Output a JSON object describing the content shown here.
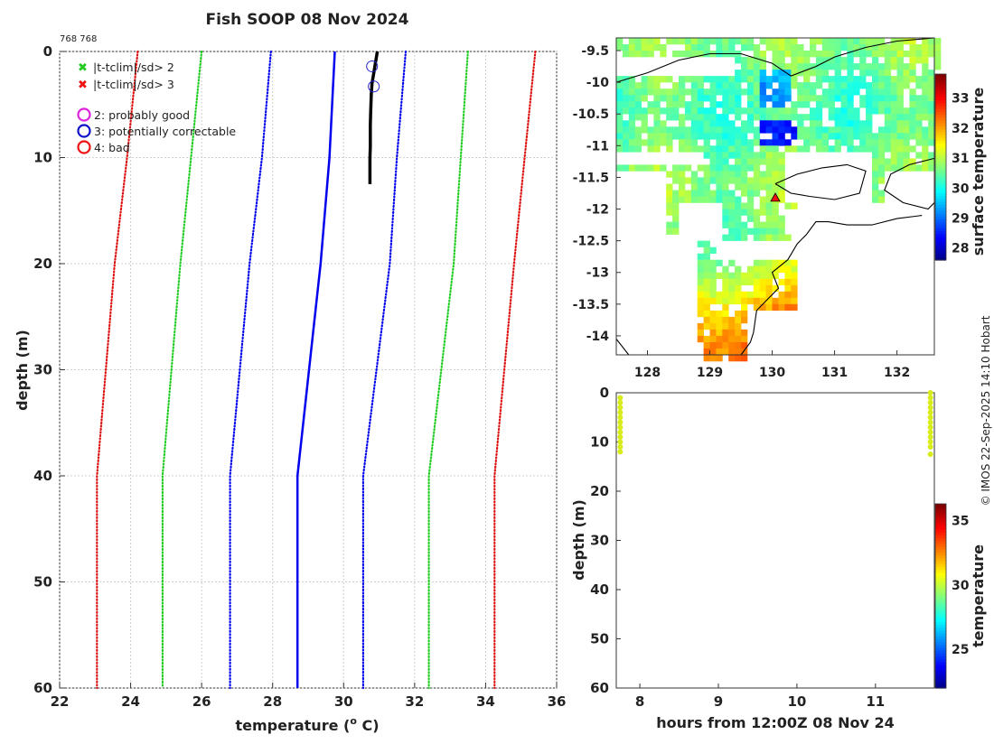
{
  "header": {
    "title": "Fish SOOP 08 Nov 2024",
    "id_label": "768 768",
    "credit": "© IMOS 22-Sep-2025 14:10 Hobart"
  },
  "legend": {
    "flag_items": [
      {
        "label": "|t-tclim|/sd> 2",
        "color": "#22cc22"
      },
      {
        "label": "|t-tclim|/sd> 3",
        "color": "#ee1111"
      }
    ],
    "qc_items": [
      {
        "label": "2: probably good",
        "color": "#dd22dd"
      },
      {
        "label": "3: potentially correctable",
        "color": "#1111cc"
      },
      {
        "label": "4: bad",
        "color": "#ee1111"
      }
    ]
  },
  "colors": {
    "profile": "#000000",
    "climatology": "#0000ee",
    "sd2": "#22cc22",
    "sd3": "#dd1111",
    "qc_marker": "#2222cc",
    "land_mask": "#ffffff",
    "map_marker": "#ee1111",
    "section_dots": "#d8ec1a"
  },
  "chart_data": [
    {
      "name": "profile",
      "type": "line",
      "title": "Fish SOOP 08 Nov 2024",
      "xlabel": "temperature (",
      "xlabel_sup": "o",
      "xlabel_tail": " C)",
      "ylabel": "depth (m)",
      "xlim": [
        22,
        36
      ],
      "ylim": [
        60,
        0
      ],
      "xticks": [
        22,
        24,
        26,
        28,
        30,
        32,
        34,
        36
      ],
      "yticks": [
        0,
        10,
        20,
        30,
        40,
        50,
        60
      ],
      "grid": true,
      "climatology_depth": [
        0,
        10,
        20,
        40,
        60
      ],
      "series": [
        {
          "name": "climatology",
          "style": "solid",
          "temp": [
            29.75,
            29.6,
            29.35,
            28.7,
            28.7
          ]
        },
        {
          "name": "clim-1sd",
          "style": "dotted",
          "temp": [
            27.95,
            27.7,
            27.35,
            26.8,
            26.8
          ]
        },
        {
          "name": "clim+1sd",
          "style": "dotted",
          "temp": [
            31.75,
            31.5,
            31.3,
            30.55,
            30.55
          ]
        },
        {
          "name": "clim-2sd",
          "style": "dotted",
          "temp": [
            26.0,
            25.7,
            25.4,
            24.9,
            24.9
          ]
        },
        {
          "name": "clim+2sd",
          "style": "dotted",
          "temp": [
            33.5,
            33.3,
            33.1,
            32.4,
            32.4
          ]
        },
        {
          "name": "clim-3sd",
          "style": "dotted",
          "temp": [
            24.2,
            23.9,
            23.55,
            23.05,
            23.05
          ]
        },
        {
          "name": "clim+3sd",
          "style": "dotted",
          "temp": [
            35.4,
            35.1,
            34.8,
            34.25,
            34.25
          ]
        }
      ],
      "profile": {
        "depth": [
          0,
          1,
          2,
          3,
          4,
          5,
          6,
          7,
          8,
          9,
          10,
          11,
          12.5
        ],
        "temp": [
          30.95,
          30.9,
          30.85,
          30.8,
          30.78,
          30.77,
          30.76,
          30.75,
          30.75,
          30.75,
          30.74,
          30.74,
          30.74
        ]
      },
      "qc_markers": [
        {
          "temp": 30.8,
          "depth": 1.4,
          "flag": 3
        },
        {
          "temp": 30.85,
          "depth": 3.3,
          "flag": 3
        }
      ]
    },
    {
      "name": "sst_map",
      "type": "heatmap",
      "xlim": [
        127.5,
        132.6
      ],
      "ylim": [
        -14.3,
        -9.3
      ],
      "xticks": [
        128,
        129,
        130,
        131,
        132
      ],
      "yticks": [
        -9.5,
        -10,
        -10.5,
        -11,
        -11.5,
        -12,
        -12.5,
        -13,
        -13.5,
        -14
      ],
      "colorbar_label": "surface temperature",
      "clim": [
        27.6,
        33.8
      ],
      "colorbar_ticks": [
        28,
        29,
        30,
        31,
        32,
        33
      ],
      "station": {
        "lon": 130.05,
        "lat": -11.82
      }
    },
    {
      "name": "section",
      "type": "scatter",
      "xlabel": "hours from 12:00Z 08 Nov 24",
      "ylabel": "depth (m)",
      "xlim": [
        7.7,
        11.75
      ],
      "ylim": [
        60,
        0
      ],
      "xticks": [
        8,
        9,
        10,
        11
      ],
      "yticks": [
        0,
        10,
        20,
        30,
        40,
        50,
        60
      ],
      "colorbar_label": "temperature",
      "clim": [
        22,
        36.3
      ],
      "colorbar_ticks": [
        25,
        30,
        35
      ],
      "points": [
        {
          "x": 7.75,
          "depths": [
            1,
            2,
            3,
            4,
            5,
            6,
            7,
            8,
            9,
            10,
            11,
            12
          ]
        },
        {
          "x": 11.7,
          "depths": [
            0,
            1,
            2,
            3,
            4,
            5,
            6,
            7,
            8,
            9,
            10,
            11,
            12.5
          ]
        }
      ]
    }
  ]
}
